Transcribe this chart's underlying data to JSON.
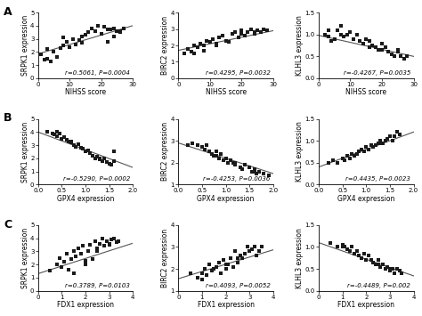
{
  "panels": [
    {
      "row": 0,
      "col": 0,
      "xlabel": "NIHSS score",
      "ylabel": "SRPK1 expression",
      "r": "r=0.5061, P=0.0004",
      "xlim": [
        0,
        30
      ],
      "ylim": [
        0,
        5
      ],
      "xticks": [
        0,
        10,
        20,
        30
      ],
      "yticks": [
        0,
        1,
        2,
        3,
        4,
        5
      ],
      "x": [
        2,
        3,
        4,
        1,
        5,
        3,
        6,
        8,
        7,
        9,
        10,
        12,
        11,
        13,
        14,
        8,
        15,
        16,
        14,
        17,
        18,
        20,
        19,
        22,
        21,
        24,
        23,
        25,
        26,
        27,
        22,
        24,
        26
      ],
      "y": [
        1.4,
        1.5,
        1.3,
        1.8,
        2.0,
        2.2,
        1.6,
        2.5,
        2.3,
        2.8,
        2.4,
        2.6,
        3.0,
        2.9,
        2.7,
        3.1,
        3.3,
        3.5,
        3.2,
        3.8,
        3.6,
        3.4,
        4.0,
        3.7,
        3.9,
        3.8,
        3.7,
        3.6,
        3.5,
        3.8,
        2.8,
        3.2,
        3.6
      ],
      "slope": 0.072,
      "intercept": 1.85
    },
    {
      "row": 0,
      "col": 1,
      "xlabel": "NIHSS score",
      "ylabel": "BIRC2 expression",
      "r": "r=0.4295, P=0.0032",
      "xlim": [
        0,
        30
      ],
      "ylim": [
        0,
        4
      ],
      "xticks": [
        0,
        10,
        20,
        30
      ],
      "yticks": [
        0,
        1,
        2,
        3,
        4
      ],
      "x": [
        2,
        3,
        4,
        5,
        6,
        7,
        8,
        9,
        10,
        11,
        12,
        13,
        14,
        15,
        16,
        17,
        18,
        19,
        20,
        21,
        22,
        23,
        24,
        25,
        26,
        27,
        28,
        5,
        8,
        12,
        15,
        20,
        24
      ],
      "y": [
        1.5,
        1.8,
        1.6,
        2.0,
        1.9,
        2.1,
        1.7,
        2.3,
        2.2,
        2.4,
        2.0,
        2.5,
        2.6,
        2.3,
        2.2,
        2.7,
        2.8,
        2.5,
        2.9,
        2.6,
        2.8,
        3.0,
        2.7,
        2.9,
        2.8,
        3.0,
        2.9,
        1.5,
        2.0,
        2.1,
        2.3,
        2.7,
        2.8
      ],
      "slope": 0.04,
      "intercept": 1.7
    },
    {
      "row": 0,
      "col": 2,
      "xlabel": "NIHSS score",
      "ylabel": "KLHL3 expression",
      "r": "r=-0.4267, P=0.0035",
      "xlim": [
        0,
        30
      ],
      "ylim": [
        0.0,
        1.5
      ],
      "xticks": [
        0,
        10,
        20,
        30
      ],
      "yticks": [
        0.0,
        0.5,
        1.0,
        1.5
      ],
      "x": [
        2,
        3,
        4,
        5,
        6,
        7,
        8,
        9,
        10,
        11,
        12,
        13,
        14,
        15,
        16,
        17,
        18,
        19,
        20,
        21,
        22,
        23,
        24,
        25,
        26,
        27,
        3,
        7,
        11,
        16,
        20,
        25,
        28
      ],
      "y": [
        1.0,
        1.1,
        0.85,
        0.9,
        1.1,
        1.2,
        0.95,
        1.0,
        1.05,
        0.9,
        1.0,
        0.85,
        0.8,
        0.9,
        0.85,
        0.75,
        0.7,
        0.65,
        0.8,
        0.7,
        0.6,
        0.55,
        0.5,
        0.65,
        0.5,
        0.45,
        0.95,
        1.0,
        0.9,
        0.7,
        0.65,
        0.6,
        0.5
      ],
      "slope": -0.016,
      "intercept": 0.98
    },
    {
      "row": 1,
      "col": 0,
      "xlabel": "GPX4 expression",
      "ylabel": "SRPK1 expression",
      "r": "r=-0.5290, P=0.0002",
      "xlim": [
        0.0,
        2.0
      ],
      "ylim": [
        0,
        5
      ],
      "xticks": [
        0.0,
        0.5,
        1.0,
        1.5,
        2.0
      ],
      "yticks": [
        0,
        1,
        2,
        3,
        4,
        5
      ],
      "x": [
        0.2,
        0.3,
        0.35,
        0.4,
        0.45,
        0.5,
        0.55,
        0.6,
        0.65,
        0.7,
        0.75,
        0.8,
        0.85,
        0.9,
        0.95,
        1.0,
        1.05,
        1.1,
        1.15,
        1.2,
        1.25,
        1.3,
        1.35,
        1.4,
        1.45,
        1.5,
        1.55,
        1.6,
        0.4,
        0.7,
        1.0,
        1.3,
        1.6
      ],
      "y": [
        4.0,
        3.9,
        3.8,
        3.7,
        3.9,
        3.5,
        3.6,
        3.4,
        3.3,
        3.2,
        3.0,
        2.9,
        3.1,
        2.8,
        2.7,
        2.5,
        2.6,
        2.4,
        2.2,
        2.0,
        2.1,
        1.9,
        1.8,
        2.0,
        1.7,
        1.6,
        1.5,
        2.5,
        4.0,
        3.3,
        2.5,
        2.0,
        1.8
      ],
      "slope": -1.35,
      "intercept": 4.0
    },
    {
      "row": 1,
      "col": 1,
      "xlabel": "GPX4 expression",
      "ylabel": "BIRC2 expression",
      "r": "r=-0.4253, P=0.0036",
      "xlim": [
        0.0,
        2.0
      ],
      "ylim": [
        1,
        4
      ],
      "xticks": [
        0.0,
        0.5,
        1.0,
        1.5,
        2.0
      ],
      "yticks": [
        1,
        2,
        3,
        4
      ],
      "x": [
        0.2,
        0.3,
        0.4,
        0.5,
        0.55,
        0.6,
        0.65,
        0.7,
        0.75,
        0.8,
        0.85,
        0.9,
        0.95,
        1.0,
        1.05,
        1.1,
        1.15,
        1.2,
        1.3,
        1.35,
        1.4,
        1.5,
        1.55,
        1.6,
        1.65,
        1.7,
        1.8,
        1.9,
        0.4,
        0.8,
        1.2,
        1.6
      ],
      "y": [
        2.8,
        2.9,
        2.8,
        2.7,
        2.6,
        2.8,
        2.5,
        2.4,
        2.3,
        2.5,
        2.2,
        2.4,
        2.1,
        2.2,
        2.0,
        2.1,
        2.0,
        1.9,
        1.8,
        1.7,
        1.9,
        1.8,
        1.6,
        1.7,
        1.5,
        1.6,
        1.5,
        1.4,
        2.8,
        2.3,
        2.0,
        1.6
      ],
      "slope": -0.7,
      "intercept": 2.9
    },
    {
      "row": 1,
      "col": 2,
      "xlabel": "GPX4 expression",
      "ylabel": "KLHL3 expression",
      "r": "r=0.4435, P=0.0023",
      "xlim": [
        0.0,
        2.0
      ],
      "ylim": [
        0.0,
        1.5
      ],
      "xticks": [
        0.0,
        0.5,
        1.0,
        1.5,
        2.0
      ],
      "yticks": [
        0.0,
        0.5,
        1.0,
        1.5
      ],
      "x": [
        0.2,
        0.3,
        0.4,
        0.5,
        0.55,
        0.6,
        0.65,
        0.7,
        0.75,
        0.8,
        0.85,
        0.9,
        0.95,
        1.0,
        1.05,
        1.1,
        1.15,
        1.2,
        1.25,
        1.3,
        1.35,
        1.4,
        1.45,
        1.5,
        1.55,
        1.6,
        1.65,
        1.7,
        0.5,
        0.9,
        1.3,
        1.6
      ],
      "y": [
        0.5,
        0.55,
        0.5,
        0.6,
        0.55,
        0.65,
        0.6,
        0.7,
        0.65,
        0.7,
        0.75,
        0.8,
        0.75,
        0.85,
        0.8,
        0.9,
        0.85,
        0.9,
        0.95,
        1.0,
        0.95,
        1.0,
        1.05,
        1.1,
        1.0,
        1.1,
        1.2,
        1.15,
        0.6,
        0.8,
        0.95,
        1.1
      ],
      "slope": 0.4,
      "intercept": 0.4
    },
    {
      "row": 2,
      "col": 0,
      "xlabel": "FDX1 expression",
      "ylabel": "SRPK1 expression",
      "r": "r=0.3789, P=0.0103",
      "xlim": [
        0,
        4
      ],
      "ylim": [
        0,
        5
      ],
      "xticks": [
        0,
        1,
        2,
        3,
        4
      ],
      "yticks": [
        0,
        1,
        2,
        3,
        4,
        5
      ],
      "x": [
        0.5,
        0.8,
        0.9,
        1.0,
        1.1,
        1.2,
        1.3,
        1.4,
        1.5,
        1.6,
        1.7,
        1.8,
        1.9,
        2.0,
        2.1,
        2.2,
        2.3,
        2.4,
        2.5,
        2.6,
        2.7,
        2.8,
        2.9,
        3.0,
        3.1,
        3.2,
        3.3,
        3.4,
        1.5,
        2.0,
        2.5,
        3.0
      ],
      "y": [
        1.5,
        2.0,
        2.5,
        1.8,
        2.2,
        2.8,
        1.6,
        2.4,
        3.0,
        2.6,
        3.2,
        2.8,
        3.4,
        2.0,
        3.0,
        3.5,
        2.4,
        3.8,
        3.2,
        3.6,
        4.0,
        3.4,
        3.8,
        3.6,
        3.9,
        4.0,
        3.7,
        3.8,
        1.3,
        2.3,
        3.0,
        3.5
      ],
      "slope": 0.58,
      "intercept": 1.3
    },
    {
      "row": 2,
      "col": 1,
      "xlabel": "FDX1 expression",
      "ylabel": "BIRC2 expression",
      "r": "r=0.4093, P=0.0052",
      "xlim": [
        0,
        4
      ],
      "ylim": [
        1,
        4
      ],
      "xticks": [
        0,
        1,
        2,
        3,
        4
      ],
      "yticks": [
        1,
        2,
        3,
        4
      ],
      "x": [
        0.5,
        0.8,
        1.0,
        1.1,
        1.2,
        1.3,
        1.4,
        1.5,
        1.6,
        1.7,
        1.8,
        1.9,
        2.0,
        2.1,
        2.2,
        2.3,
        2.4,
        2.5,
        2.6,
        2.7,
        2.8,
        2.9,
        3.0,
        3.1,
        3.2,
        3.3,
        3.4,
        3.5,
        1.0,
        1.5,
        2.0,
        2.5,
        3.0
      ],
      "y": [
        1.8,
        1.6,
        1.8,
        2.0,
        1.7,
        2.2,
        1.9,
        2.0,
        2.1,
        2.3,
        1.8,
        2.4,
        2.0,
        2.2,
        2.5,
        2.1,
        2.8,
        2.3,
        2.6,
        2.5,
        2.7,
        3.0,
        2.8,
        2.9,
        3.0,
        2.6,
        2.8,
        3.0,
        1.5,
        2.0,
        2.2,
        2.5,
        2.8
      ],
      "slope": 0.33,
      "intercept": 1.55
    },
    {
      "row": 2,
      "col": 2,
      "xlabel": "FDX1 expression",
      "ylabel": "KLHL3 expression",
      "r": "r=-0.4489, P=0.002",
      "xlim": [
        0,
        4
      ],
      "ylim": [
        0.0,
        1.5
      ],
      "xticks": [
        0,
        1,
        2,
        3,
        4
      ],
      "yticks": [
        0.0,
        0.5,
        1.0,
        1.5
      ],
      "x": [
        0.5,
        0.8,
        1.0,
        1.1,
        1.2,
        1.3,
        1.4,
        1.5,
        1.6,
        1.7,
        1.8,
        1.9,
        2.0,
        2.1,
        2.2,
        2.3,
        2.4,
        2.5,
        2.6,
        2.7,
        2.8,
        2.9,
        3.0,
        3.1,
        3.2,
        3.3,
        3.4,
        3.5,
        1.0,
        1.5,
        2.0,
        2.5,
        3.0
      ],
      "y": [
        1.1,
        1.0,
        1.05,
        1.0,
        0.95,
        0.9,
        1.0,
        0.85,
        0.9,
        0.8,
        0.75,
        0.85,
        0.7,
        0.8,
        0.7,
        0.65,
        0.6,
        0.7,
        0.55,
        0.6,
        0.5,
        0.55,
        0.45,
        0.5,
        0.4,
        0.5,
        0.45,
        0.4,
        1.0,
        0.85,
        0.7,
        0.6,
        0.5
      ],
      "slope": -0.19,
      "intercept": 1.1
    }
  ],
  "row_labels": [
    "A",
    "B",
    "C"
  ],
  "point_color": "#1a1a1a",
  "line_color": "#555555",
  "font_size": 5.5,
  "annot_font_size": 5.0,
  "tick_font_size": 5.0
}
